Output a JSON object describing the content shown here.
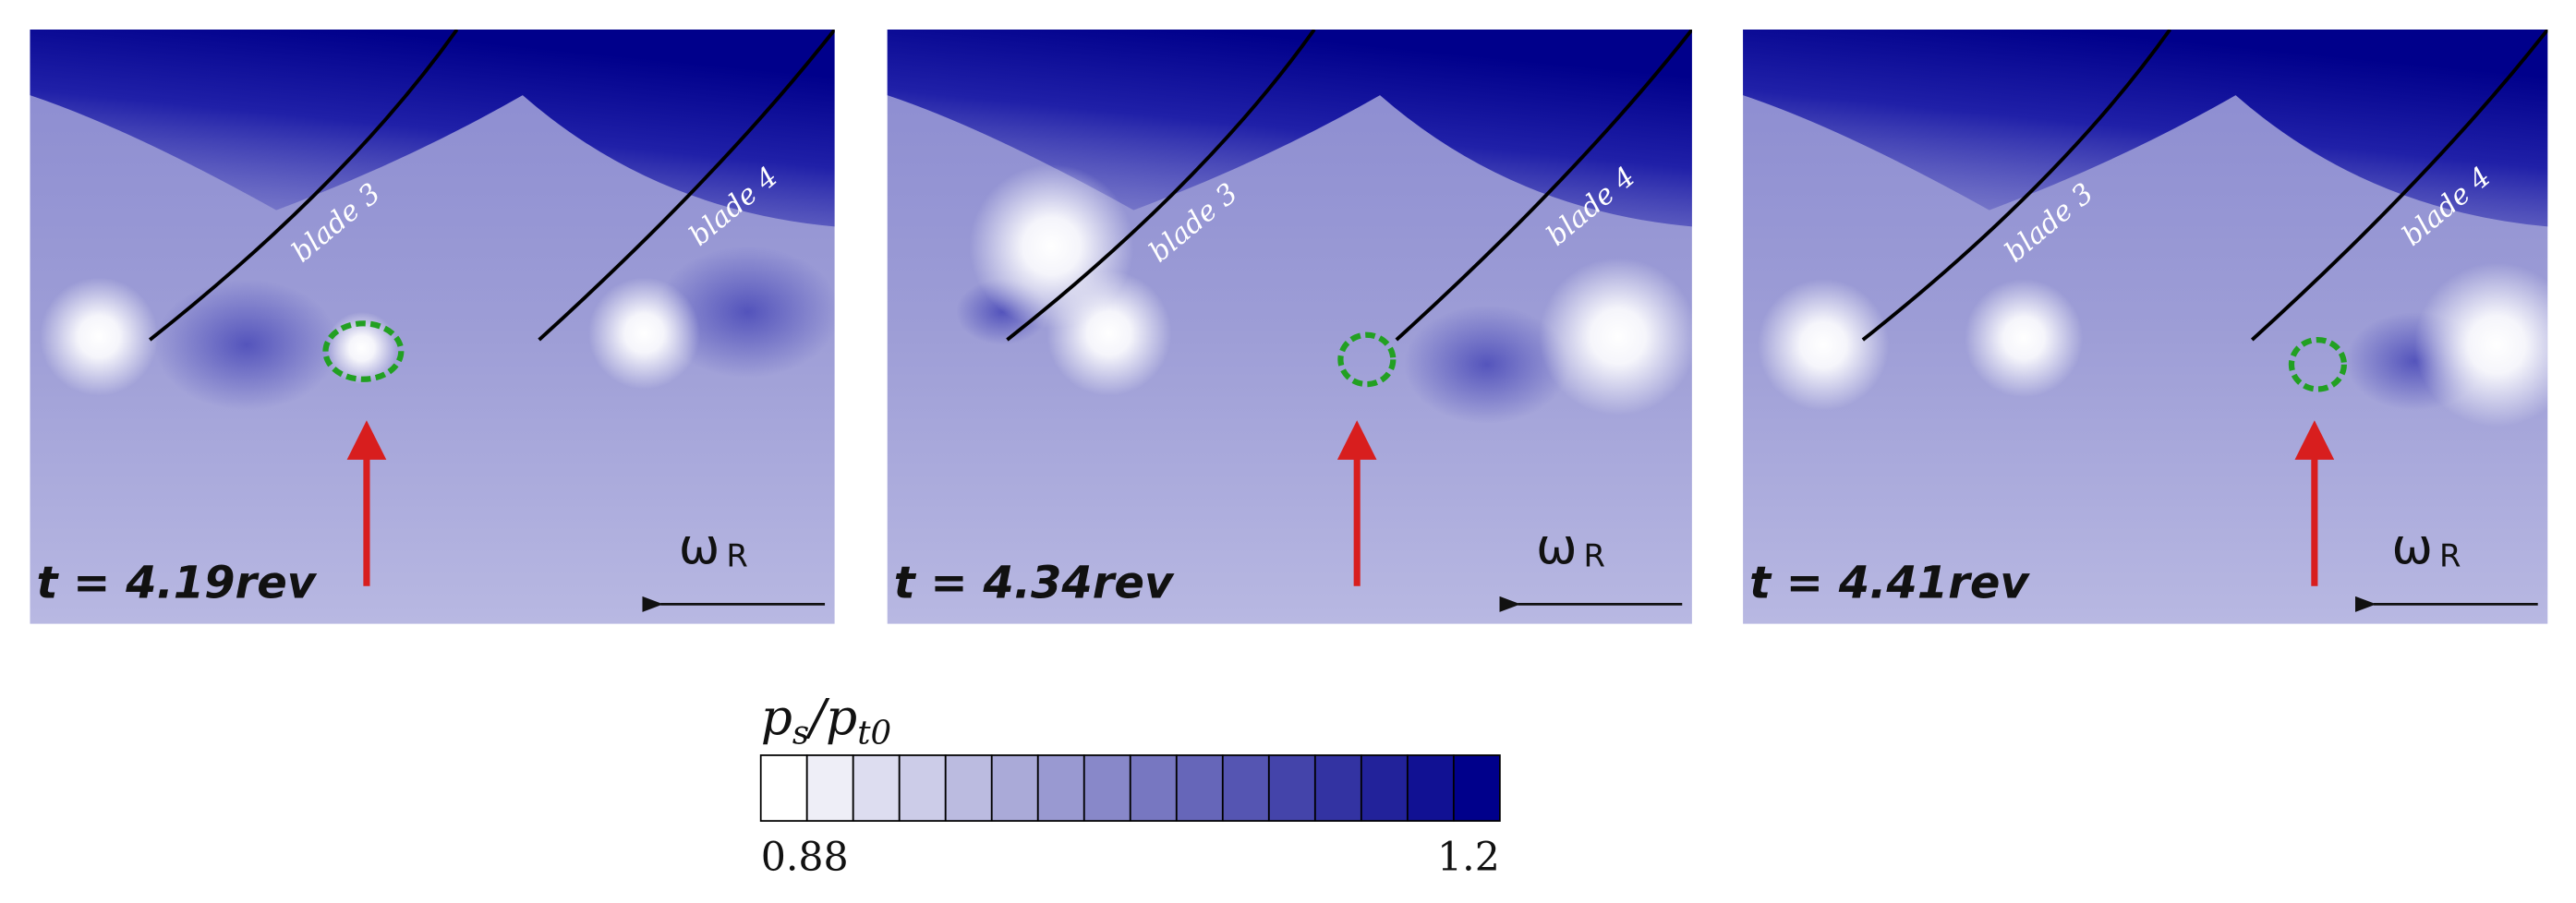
{
  "panels": [
    {
      "time_label": "t = 4.19rev",
      "blade_left": "blade 3",
      "blade_right": "blade 4",
      "omega": "ω",
      "omega_sub": "R"
    },
    {
      "time_label": "t = 4.34rev",
      "blade_left": "blade 3",
      "blade_right": "blade 4",
      "omega": "ω",
      "omega_sub": "R"
    },
    {
      "time_label": "t = 4.41rev",
      "blade_left": "blade 3",
      "blade_right": "blade 4",
      "omega": "ω",
      "omega_sub": "R"
    }
  ],
  "colorbar": {
    "label": "ps/pt0",
    "min": 0.88,
    "max": 1.2,
    "min_label": "0.88",
    "max_label": "1.2",
    "levels": 16,
    "color_low": "#ffffff",
    "color_high": "#00008b"
  }
}
